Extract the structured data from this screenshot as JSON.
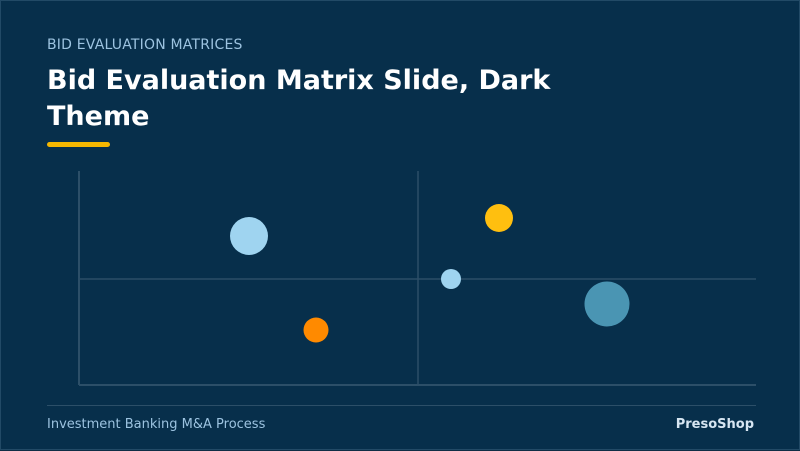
{
  "header": {
    "kicker": "BID EVALUATION MATRICES",
    "title": "Bid Evaluation Matrix Slide, Dark Theme"
  },
  "colors": {
    "background": "#072f4b",
    "accent": "#f5b700",
    "axis": "#2c4f68",
    "light_blue": "#9fd4f0",
    "orange": "#ff8a00",
    "yellow": "#ffbf0f",
    "teal": "#4a95b3"
  },
  "matrix": {
    "bubbles": [
      {
        "id": "bubble-light-blue-large",
        "color": "#9fd4f0",
        "size": "large"
      },
      {
        "id": "bubble-orange",
        "color": "#ff8a00",
        "size": "medium"
      },
      {
        "id": "bubble-yellow",
        "color": "#ffbf0f",
        "size": "medium"
      },
      {
        "id": "bubble-light-blue-small",
        "color": "#9fd4f0",
        "size": "small"
      },
      {
        "id": "bubble-teal-large",
        "color": "#4a95b3",
        "size": "large"
      }
    ]
  },
  "footer": {
    "left_text": "Investment Banking M&A Process",
    "brand": "PresoShop"
  }
}
